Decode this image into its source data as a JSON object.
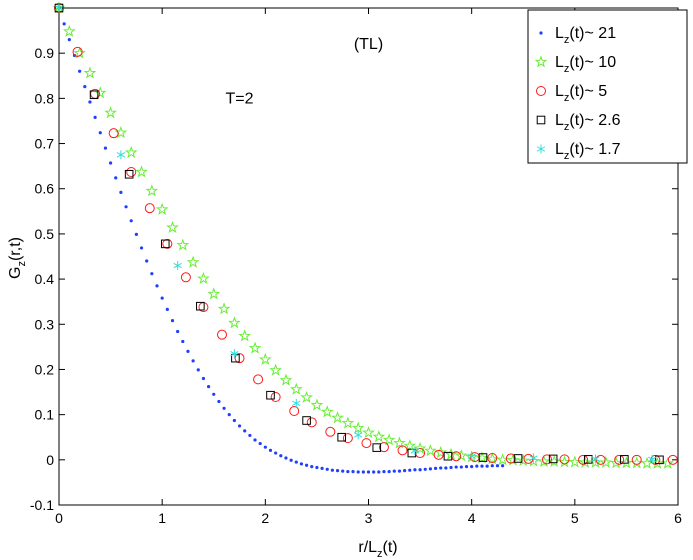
{
  "chart_data": {
    "type": "scatter",
    "title": "",
    "xlabel_main": "r/L",
    "xlabel_sub": "z",
    "xlabel_tail": "(t)",
    "ylabel_main": "G",
    "ylabel_sub": "z",
    "ylabel_tail": "(r,t)",
    "xlim": [
      0,
      6
    ],
    "ylim": [
      -0.1,
      1.0
    ],
    "xticks": [
      0,
      1,
      2,
      3,
      4,
      5,
      6
    ],
    "yticks": [
      -0.1,
      0,
      0.1,
      0.2,
      0.3,
      0.4,
      0.5,
      0.6,
      0.7,
      0.8,
      0.9
    ],
    "grid": false,
    "legend_position": "top-right",
    "annotations": [
      {
        "text": "(TL)",
        "x": 3.0,
        "y": 0.92
      },
      {
        "text": "T=2",
        "x": 1.75,
        "y": 0.8
      }
    ],
    "series": [
      {
        "name_main": "L",
        "name_sub": "z",
        "name_tail": "(t)~ 21",
        "marker": "dot",
        "color": "#1f3fff",
        "x": [
          0.0,
          0.05,
          0.1,
          0.15,
          0.2,
          0.25,
          0.3,
          0.35,
          0.4,
          0.45,
          0.5,
          0.55,
          0.6,
          0.65,
          0.7,
          0.75,
          0.8,
          0.85,
          0.9,
          0.95,
          1.0,
          1.05,
          1.1,
          1.15,
          1.2,
          1.25,
          1.3,
          1.35,
          1.4,
          1.45,
          1.5,
          1.55,
          1.6,
          1.65,
          1.7,
          1.75,
          1.8,
          1.85,
          1.9,
          1.95,
          2.0,
          2.05,
          2.1,
          2.15,
          2.2,
          2.25,
          2.3,
          2.35,
          2.4,
          2.45,
          2.5,
          2.55,
          2.6,
          2.65,
          2.7,
          2.75,
          2.8,
          2.85,
          2.9,
          2.95,
          3.0,
          3.05,
          3.1,
          3.15,
          3.2,
          3.25,
          3.3,
          3.35,
          3.4,
          3.45,
          3.5,
          3.55,
          3.6,
          3.65,
          3.7,
          3.75,
          3.8,
          3.85,
          3.9,
          3.95,
          4.0,
          4.05,
          4.1,
          4.15,
          4.2,
          4.25,
          4.3
        ],
        "y": [
          1.0,
          0.965,
          0.93,
          0.895,
          0.86,
          0.826,
          0.792,
          0.758,
          0.724,
          0.69,
          0.657,
          0.624,
          0.592,
          0.56,
          0.529,
          0.499,
          0.469,
          0.44,
          0.412,
          0.385,
          0.358,
          0.333,
          0.308,
          0.284,
          0.262,
          0.24,
          0.219,
          0.199,
          0.18,
          0.162,
          0.145,
          0.129,
          0.114,
          0.1,
          0.087,
          0.075,
          0.064,
          0.054,
          0.044,
          0.036,
          0.028,
          0.021,
          0.015,
          0.009,
          0.004,
          -0.001,
          -0.005,
          -0.009,
          -0.012,
          -0.015,
          -0.017,
          -0.019,
          -0.021,
          -0.023,
          -0.024,
          -0.025,
          -0.026,
          -0.026,
          -0.027,
          -0.027,
          -0.027,
          -0.027,
          -0.027,
          -0.026,
          -0.026,
          -0.025,
          -0.025,
          -0.024,
          -0.023,
          -0.022,
          -0.022,
          -0.021,
          -0.02,
          -0.019,
          -0.018,
          -0.018,
          -0.017,
          -0.016,
          -0.016,
          -0.015,
          -0.015,
          -0.014,
          -0.014,
          -0.014,
          -0.013,
          -0.013,
          -0.013
        ]
      },
      {
        "name_main": "L",
        "name_sub": "z",
        "name_tail": "(t)~ 10",
        "marker": "star5",
        "color": "#66ee33",
        "x": [
          0.0,
          0.1,
          0.2,
          0.3,
          0.4,
          0.5,
          0.6,
          0.7,
          0.8,
          0.9,
          1.0,
          1.1,
          1.2,
          1.3,
          1.4,
          1.5,
          1.6,
          1.7,
          1.8,
          1.9,
          2.0,
          2.1,
          2.2,
          2.3,
          2.4,
          2.5,
          2.6,
          2.7,
          2.8,
          2.9,
          3.0,
          3.1,
          3.2,
          3.3,
          3.4,
          3.5,
          3.6,
          3.7,
          3.8,
          3.9,
          4.0,
          4.1,
          4.2,
          4.3,
          4.4,
          4.5,
          4.6,
          4.7,
          4.8,
          4.9,
          5.0,
          5.1,
          5.2,
          5.3,
          5.4,
          5.5,
          5.6,
          5.7,
          5.8,
          5.9
        ],
        "y": [
          1.0,
          0.948,
          0.9,
          0.856,
          0.812,
          0.768,
          0.724,
          0.68,
          0.637,
          0.595,
          0.554,
          0.514,
          0.475,
          0.437,
          0.401,
          0.367,
          0.334,
          0.303,
          0.274,
          0.247,
          0.222,
          0.198,
          0.176,
          0.156,
          0.138,
          0.121,
          0.106,
          0.093,
          0.081,
          0.07,
          0.06,
          0.051,
          0.044,
          0.037,
          0.031,
          0.025,
          0.02,
          0.016,
          0.012,
          0.009,
          0.006,
          0.004,
          0.002,
          0.0,
          -0.001,
          -0.002,
          -0.003,
          -0.004,
          -0.004,
          -0.005,
          -0.005,
          -0.006,
          -0.006,
          -0.006,
          -0.007,
          -0.007,
          -0.007,
          -0.008,
          -0.008,
          -0.008
        ]
      },
      {
        "name_main": "L",
        "name_sub": "z",
        "name_tail": "(t)~ 5",
        "marker": "circle",
        "color": "#ff1a1a",
        "x": [
          0.0,
          0.18,
          0.35,
          0.53,
          0.7,
          0.88,
          1.05,
          1.23,
          1.4,
          1.58,
          1.75,
          1.93,
          2.1,
          2.28,
          2.45,
          2.63,
          2.8,
          2.98,
          3.15,
          3.33,
          3.5,
          3.68,
          3.85,
          4.03,
          4.2,
          4.38,
          4.55,
          4.73,
          4.9,
          5.08,
          5.25,
          5.43,
          5.6,
          5.78,
          5.95
        ],
        "y": [
          1.0,
          0.903,
          0.81,
          0.723,
          0.637,
          0.557,
          0.478,
          0.404,
          0.338,
          0.277,
          0.225,
          0.178,
          0.139,
          0.108,
          0.083,
          0.062,
          0.048,
          0.037,
          0.028,
          0.021,
          0.015,
          0.011,
          0.008,
          0.006,
          0.004,
          0.003,
          0.002,
          0.001,
          0.001,
          0.0,
          0.0,
          0.0,
          0.0,
          0.0,
          0.0
        ]
      },
      {
        "name_main": "L",
        "name_sub": "z",
        "name_tail": "(t)~ 2.6",
        "marker": "square",
        "color": "#000000",
        "x": [
          0.0,
          0.34,
          0.68,
          1.03,
          1.37,
          1.71,
          2.05,
          2.4,
          2.74,
          3.08,
          3.42,
          3.77,
          4.11,
          4.45,
          4.79,
          5.13,
          5.48,
          5.82
        ],
        "y": [
          1.0,
          0.808,
          0.632,
          0.478,
          0.34,
          0.225,
          0.143,
          0.087,
          0.05,
          0.027,
          0.015,
          0.008,
          0.005,
          0.003,
          0.002,
          0.001,
          0.001,
          0.0
        ]
      },
      {
        "name_main": "L",
        "name_sub": "z",
        "name_tail": "(t)~ 1.7",
        "marker": "asterisk",
        "color": "#33dddd",
        "x": [
          0.0,
          0.6,
          1.15,
          1.7,
          2.3,
          2.9,
          3.45,
          4.0,
          4.6,
          5.2,
          5.75
        ],
        "y": [
          1.0,
          0.675,
          0.43,
          0.235,
          0.125,
          0.055,
          0.02,
          0.008,
          0.004,
          0.002,
          0.001
        ]
      }
    ]
  }
}
